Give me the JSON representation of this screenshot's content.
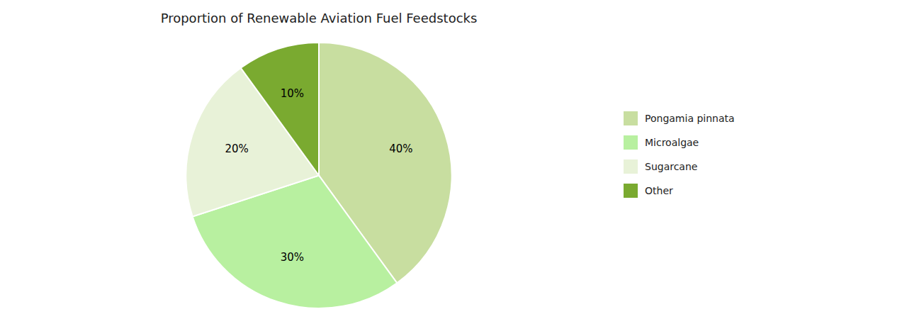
{
  "chart_data": {
    "type": "pie",
    "title": "Proportion of Renewable Aviation Fuel Feedstocks",
    "categories": [
      "Pongamia pinnata",
      "Microalgae",
      "Sugarcane",
      "Other"
    ],
    "values": [
      40,
      30,
      20,
      10
    ],
    "value_labels": [
      "40%",
      "30%",
      "20%",
      "10%"
    ],
    "colors": [
      "#c8dea0",
      "#b8f0a0",
      "#e8f2d8",
      "#7aaa30"
    ],
    "data_labels": true,
    "legend": "right"
  }
}
